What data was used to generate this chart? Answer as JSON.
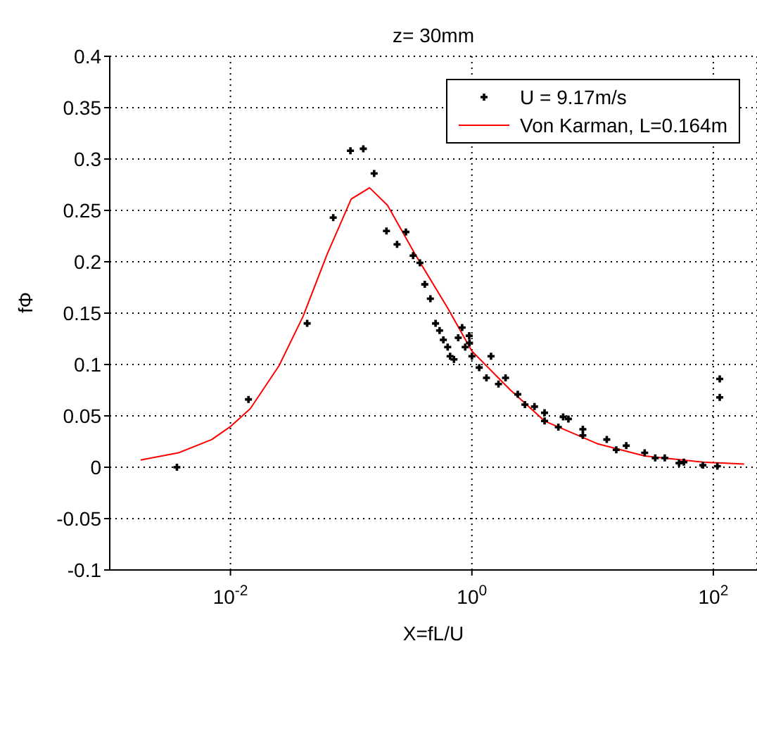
{
  "chart_data": {
    "type": "scatter",
    "title": "z= 30mm",
    "xlabel": "X=fL/U",
    "ylabel": "fΦ",
    "log": "x",
    "xlim": [
      0.001,
      230
    ],
    "xticks": [
      {
        "value": 0.01,
        "label": "10$^{-2}$"
      },
      {
        "value": 1,
        "label": "10$^{0}$"
      },
      {
        "value": 100,
        "label": "10$^{2}$"
      }
    ],
    "ylim": [
      -0.1,
      0.4
    ],
    "yticks": [
      -0.1,
      -0.05,
      0,
      0.05,
      0.1,
      0.15,
      0.2,
      0.25,
      0.3,
      0.35,
      0.4
    ],
    "grid": true,
    "legend": "top right",
    "series": [
      {
        "name": "U = 9.17m/s",
        "marker": "cross",
        "color": "#000000",
        "x": [
          0.0036,
          0.0141,
          0.0432,
          0.071,
          0.0986,
          0.126,
          0.155,
          0.196,
          0.24,
          0.284,
          0.326,
          0.371,
          0.407,
          0.453,
          0.5,
          0.54,
          0.58,
          0.63,
          0.66,
          0.71,
          0.77,
          0.83,
          0.88,
          0.95,
          0.955,
          1.0,
          1.44,
          1.15,
          1.32,
          1.9,
          1.66,
          2.4,
          2.75,
          3.3,
          4.0,
          4.0,
          5.2,
          5.7,
          6.3,
          8.3,
          8.3,
          13.1,
          15.7,
          19,
          27,
          33,
          39.6,
          52,
          57,
          82,
          108,
          113,
          113
        ],
        "values": [
          0,
          0.066,
          0.14,
          0.243,
          0.308,
          0.31,
          0.286,
          0.23,
          0.217,
          0.229,
          0.206,
          0.199,
          0.178,
          0.164,
          0.14,
          0.133,
          0.124,
          0.117,
          0.108,
          0.105,
          0.126,
          0.136,
          0.117,
          0.128,
          0.121,
          0.108,
          0.108,
          0.097,
          0.087,
          0.087,
          0.081,
          0.071,
          0.061,
          0.059,
          0.053,
          0.045,
          0.039,
          0.049,
          0.047,
          0.037,
          0.031,
          0.027,
          0.017,
          0.021,
          0.014,
          0.009,
          0.009,
          0.004,
          0.005,
          0.002,
          0.001,
          0.086,
          0.068
        ]
      },
      {
        "name": "Von Karman, L=0.164m",
        "type": "line",
        "marker": "none",
        "color": "#ff0000",
        "x": [
          0.0018,
          0.0037,
          0.007,
          0.0101,
          0.0146,
          0.0253,
          0.04,
          0.063,
          0.1,
          0.142,
          0.2,
          0.332,
          0.63,
          1.0,
          2.09,
          4.0,
          10.9,
          27,
          82,
          180
        ],
        "values": [
          0.007,
          0.014,
          0.027,
          0.04,
          0.057,
          0.099,
          0.147,
          0.207,
          0.261,
          0.272,
          0.255,
          0.209,
          0.155,
          0.113,
          0.075,
          0.045,
          0.023,
          0.011,
          0.005,
          0.003
        ]
      }
    ]
  }
}
